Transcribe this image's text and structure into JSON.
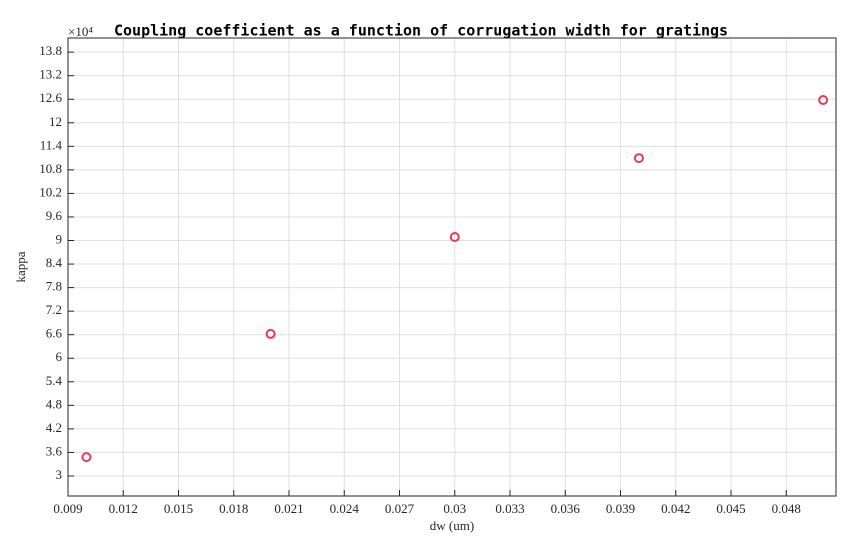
{
  "chart_data": {
    "type": "scatter",
    "title": "Coupling coefficient as a function of corrugation width for gratings",
    "x_label": "dw (um)",
    "y_label": "kappa",
    "y_multiplier": "×10⁴",
    "series": [
      {
        "name": "kappa",
        "color": "#e8385b",
        "x": [
          0.01,
          0.02,
          0.03,
          0.04,
          0.05
        ],
        "values": [
          3.48,
          6.62,
          9.09,
          11.1,
          12.58
        ]
      }
    ],
    "xlim": [
      0.009,
      0.0507
    ],
    "ylim": [
      2.49,
      14.16
    ],
    "xticks": [
      0.009,
      0.012,
      0.015,
      0.018,
      0.021,
      0.024,
      0.027,
      0.03,
      0.033,
      0.036,
      0.039,
      0.042,
      0.045,
      0.048
    ],
    "yticks": [
      3,
      3.6,
      4.2,
      4.8,
      5.4,
      6,
      6.6,
      7.2,
      7.8,
      8.4,
      9,
      9.6,
      10.2,
      10.8,
      11.4,
      12,
      12.6,
      13.2,
      13.8
    ],
    "grid": true
  }
}
